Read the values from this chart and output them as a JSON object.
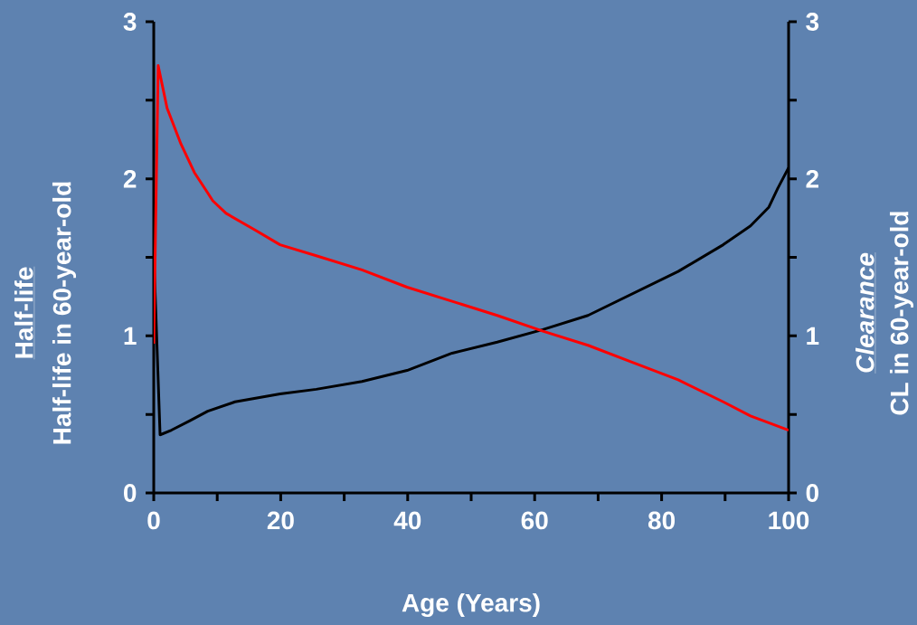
{
  "chart_data": {
    "type": "line",
    "xlabel": "Age (Years)",
    "ylabel": "Half-life in 60-year-old",
    "y2label": "CL in 60-year-old",
    "annotations": [
      "Half-life",
      "Clearance"
    ],
    "xlim": [
      0,
      100
    ],
    "xticks": [
      0,
      {
        "value": 10,
        "label": null
      },
      20,
      {
        "value": 30,
        "label": null
      },
      40,
      {
        "value": 50,
        "label": null
      },
      60,
      {
        "value": 70,
        "label": null
      },
      80,
      {
        "value": 90,
        "label": null
      },
      100
    ],
    "ylim": [
      0,
      3
    ],
    "yticks": [
      0,
      {
        "value": 0.5,
        "label": null
      },
      1,
      {
        "value": 1.5,
        "label": null
      },
      2,
      {
        "value": 2.5,
        "label": null
      },
      3
    ],
    "y2lim": [
      0,
      3
    ],
    "y2ticks": [
      0,
      {
        "value": 0.5,
        "label": null
      },
      1,
      {
        "value": 1.5,
        "label": null
      },
      2,
      {
        "value": 2.5,
        "label": null
      },
      3
    ],
    "series": [
      {
        "color": "#000000",
        "x": [
          0,
          1,
          2.8,
          5.7,
          8.5,
          12.8,
          19.9,
          25.6,
          32.8,
          39.9,
          47,
          54.1,
          61.3,
          68.4,
          75.5,
          82.6,
          89.7,
          94,
          96.9,
          98.3,
          100
        ],
        "values": [
          1.53,
          0.37,
          0.4,
          0.46,
          0.52,
          0.58,
          0.63,
          0.66,
          0.71,
          0.78,
          0.89,
          0.96,
          1.04,
          1.13,
          1.27,
          1.41,
          1.58,
          1.7,
          1.82,
          1.94,
          2.07
        ]
      },
      {
        "color": "#ff0000",
        "axis": "y2",
        "x": [
          0,
          0.7,
          2.1,
          4.3,
          6.4,
          8.5,
          9.3,
          11.4,
          15.7,
          19.9,
          25.6,
          32.8,
          39.9,
          47,
          54.1,
          61.3,
          68.4,
          75.5,
          82.6,
          89.7,
          94,
          100
        ],
        "values": [
          0.95,
          2.72,
          2.45,
          2.22,
          2.04,
          1.91,
          1.86,
          1.78,
          1.68,
          1.58,
          1.51,
          1.42,
          1.31,
          1.22,
          1.13,
          1.03,
          0.94,
          0.83,
          0.72,
          0.58,
          0.49,
          0.4
        ]
      }
    ]
  }
}
